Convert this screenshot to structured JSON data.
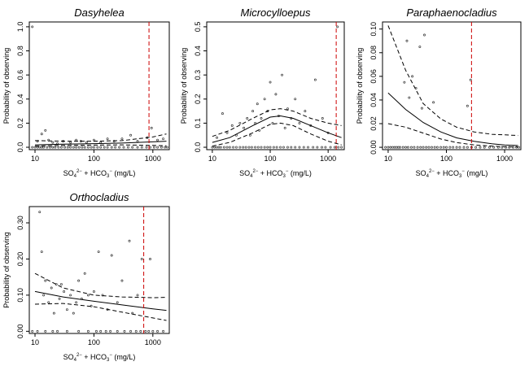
{
  "chart_data": [
    {
      "type": "scatter",
      "title": "Dasyhelea",
      "xlabel": {
        "base1": "SO",
        "sub1": "4",
        "sup1": "2−",
        "mid": " + HCO",
        "sub2": "3",
        "sup2": "−",
        "unit": " (mg/L)"
      },
      "ylabel": "Probability of observing",
      "xscale": "log",
      "xlim": [
        8,
        1900
      ],
      "ylim": [
        -0.02,
        1.04
      ],
      "xticks": [
        10,
        100,
        1000
      ],
      "xtick_labels": [
        "10",
        "100",
        "1000"
      ],
      "yticks": [
        0,
        0.2,
        0.4,
        0.6,
        0.8,
        1.0
      ],
      "ytick_labels": [
        "0.0",
        "0.2",
        "0.4",
        "0.6",
        "0.8",
        "1.0"
      ],
      "threshold_x": 860,
      "points": [
        {
          "x": 9,
          "y": 1.0
        },
        {
          "x": 11,
          "y": 0.05
        },
        {
          "x": 13,
          "y": 0.11
        },
        {
          "x": 15,
          "y": 0.14
        },
        {
          "x": 17,
          "y": 0.06
        },
        {
          "x": 20,
          "y": 0.04
        },
        {
          "x": 24,
          "y": 0.03
        },
        {
          "x": 30,
          "y": 0.05
        },
        {
          "x": 40,
          "y": 0.04
        },
        {
          "x": 50,
          "y": 0.06
        },
        {
          "x": 60,
          "y": 0.05
        },
        {
          "x": 75,
          "y": 0.04
        },
        {
          "x": 100,
          "y": 0.06
        },
        {
          "x": 130,
          "y": 0.04
        },
        {
          "x": 170,
          "y": 0.07
        },
        {
          "x": 220,
          "y": 0.05
        },
        {
          "x": 300,
          "y": 0.07
        },
        {
          "x": 420,
          "y": 0.1
        },
        {
          "x": 550,
          "y": 0.05
        },
        {
          "x": 800,
          "y": 0.08
        },
        {
          "x": 950,
          "y": 0.16
        },
        {
          "x": 1200,
          "y": 0.06
        },
        {
          "x": 1500,
          "y": 0.07
        }
      ],
      "zeros_x": [
        9,
        10,
        11,
        12,
        13,
        14,
        16,
        18,
        20,
        22,
        25,
        28,
        32,
        36,
        40,
        45,
        50,
        56,
        63,
        70,
        80,
        90,
        100,
        115,
        130,
        150,
        170,
        200,
        230,
        270,
        320,
        380,
        450,
        550,
        650,
        780,
        900,
        1050,
        1200,
        1400,
        1600,
        1750
      ],
      "fit_x": [
        10,
        30,
        100,
        300,
        1000,
        1700
      ],
      "fit_y": [
        0.02,
        0.025,
        0.03,
        0.035,
        0.045,
        0.05
      ],
      "lower_y": [
        0.01,
        0.015,
        0.018,
        0.02,
        0.015,
        0.012
      ],
      "upper_y": [
        0.055,
        0.05,
        0.05,
        0.055,
        0.085,
        0.11
      ]
    },
    {
      "type": "scatter",
      "title": "Microcylloepus",
      "xlabel": {
        "base1": "SO",
        "sub1": "4",
        "sup1": "2−",
        "mid": " + HCO",
        "sub2": "3",
        "sup2": "−",
        "unit": " (mg/L)"
      },
      "ylabel": "Probability of observing",
      "xscale": "log",
      "xlim": [
        8,
        1900
      ],
      "ylim": [
        -0.01,
        0.52
      ],
      "xticks": [
        10,
        100,
        1000
      ],
      "xtick_labels": [
        "10",
        "100",
        "1000"
      ],
      "yticks": [
        0,
        0.1,
        0.2,
        0.3,
        0.4,
        0.5
      ],
      "ytick_labels": [
        "0.0",
        "0.1",
        "0.2",
        "0.3",
        "0.4",
        "0.5"
      ],
      "threshold_x": 1380,
      "points": [
        {
          "x": 12,
          "y": 0.04
        },
        {
          "x": 15,
          "y": 0.14
        },
        {
          "x": 18,
          "y": 0.06
        },
        {
          "x": 22,
          "y": 0.09
        },
        {
          "x": 26,
          "y": 0.05
        },
        {
          "x": 30,
          "y": 0.1
        },
        {
          "x": 35,
          "y": 0.08
        },
        {
          "x": 40,
          "y": 0.12
        },
        {
          "x": 45,
          "y": 0.05
        },
        {
          "x": 50,
          "y": 0.15
        },
        {
          "x": 55,
          "y": 0.1
        },
        {
          "x": 60,
          "y": 0.18
        },
        {
          "x": 65,
          "y": 0.07
        },
        {
          "x": 70,
          "y": 0.12
        },
        {
          "x": 80,
          "y": 0.2
        },
        {
          "x": 90,
          "y": 0.15
        },
        {
          "x": 100,
          "y": 0.27
        },
        {
          "x": 110,
          "y": 0.1
        },
        {
          "x": 125,
          "y": 0.22
        },
        {
          "x": 140,
          "y": 0.13
        },
        {
          "x": 160,
          "y": 0.3
        },
        {
          "x": 180,
          "y": 0.08
        },
        {
          "x": 200,
          "y": 0.16
        },
        {
          "x": 230,
          "y": 0.12
        },
        {
          "x": 270,
          "y": 0.2
        },
        {
          "x": 320,
          "y": 0.1
        },
        {
          "x": 400,
          "y": 0.15
        },
        {
          "x": 500,
          "y": 0.09
        },
        {
          "x": 600,
          "y": 0.28
        },
        {
          "x": 800,
          "y": 0.12
        },
        {
          "x": 1000,
          "y": 0.06
        },
        {
          "x": 1450,
          "y": 0.5
        }
      ],
      "zeros_x": [
        10,
        11,
        12,
        13,
        14,
        16,
        18,
        20,
        23,
        26,
        30,
        34,
        38,
        43,
        48,
        55,
        62,
        70,
        80,
        90,
        100,
        115,
        130,
        150,
        170,
        200,
        230,
        270,
        320,
        380,
        450,
        550,
        650,
        780,
        900,
        1100,
        1300,
        1500,
        1700
      ],
      "fit_x": [
        10,
        20,
        50,
        100,
        150,
        250,
        500,
        1000,
        1700
      ],
      "fit_y": [
        0.02,
        0.04,
        0.09,
        0.125,
        0.13,
        0.12,
        0.09,
        0.06,
        0.04
      ],
      "lower_y": [
        0.005,
        0.02,
        0.06,
        0.095,
        0.1,
        0.09,
        0.055,
        0.025,
        0.01
      ],
      "upper_y": [
        0.045,
        0.07,
        0.12,
        0.155,
        0.16,
        0.15,
        0.12,
        0.1,
        0.09
      ]
    },
    {
      "type": "scatter",
      "title": "Paraphaenocladius",
      "xlabel": {
        "base1": "SO",
        "sub1": "4",
        "sup1": "2−",
        "mid": " + HCO",
        "sub2": "3",
        "sup2": "−",
        "unit": " (mg/L)"
      },
      "ylabel": "Probability of observing",
      "xscale": "log",
      "xlim": [
        8,
        1900
      ],
      "ylim": [
        -0.002,
        0.106
      ],
      "xticks": [
        10,
        100,
        1000
      ],
      "xtick_labels": [
        "10",
        "100",
        "1000"
      ],
      "yticks": [
        0,
        0.02,
        0.04,
        0.06,
        0.08,
        0.1
      ],
      "ytick_labels": [
        "0.00",
        "0.02",
        "0.04",
        "0.06",
        "0.08",
        "0.10"
      ],
      "threshold_x": 270,
      "points": [
        {
          "x": 19,
          "y": 0.055
        },
        {
          "x": 21,
          "y": 0.09
        },
        {
          "x": 23,
          "y": 0.042
        },
        {
          "x": 26,
          "y": 0.06
        },
        {
          "x": 30,
          "y": 0.05
        },
        {
          "x": 35,
          "y": 0.085
        },
        {
          "x": 38,
          "y": 0.033
        },
        {
          "x": 42,
          "y": 0.095
        },
        {
          "x": 60,
          "y": 0.038
        },
        {
          "x": 230,
          "y": 0.035
        },
        {
          "x": 260,
          "y": 0.057
        }
      ],
      "zeros_x": [
        9,
        10,
        11,
        12,
        13,
        14,
        15,
        16,
        18,
        20,
        22,
        25,
        28,
        32,
        36,
        40,
        45,
        50,
        56,
        63,
        70,
        80,
        90,
        100,
        115,
        130,
        150,
        170,
        200,
        230,
        270,
        320,
        380,
        450,
        550,
        650,
        780,
        900,
        1050,
        1200,
        1400,
        1600,
        1750
      ],
      "fit_x": [
        10,
        20,
        40,
        80,
        150,
        300,
        600,
        1000,
        1700
      ],
      "fit_y": [
        0.046,
        0.032,
        0.021,
        0.013,
        0.008,
        0.005,
        0.003,
        0.002,
        0.0015
      ],
      "lower_y": [
        0.02,
        0.017,
        0.012,
        0.007,
        0.004,
        0.002,
        0.001,
        0.0005,
        0.0003
      ],
      "upper_y": [
        0.103,
        0.065,
        0.037,
        0.024,
        0.017,
        0.013,
        0.011,
        0.0105,
        0.01
      ]
    },
    {
      "type": "scatter",
      "title": "Orthocladius",
      "xlabel": {
        "base1": "SO",
        "sub1": "4",
        "sup1": "2−",
        "mid": " + HCO",
        "sub2": "3",
        "sup2": "−",
        "unit": " (mg/L)"
      },
      "ylabel": "Probability of observing",
      "xscale": "log",
      "xlim": [
        8,
        1900
      ],
      "ylim": [
        -0.006,
        0.345
      ],
      "xticks": [
        10,
        100,
        1000
      ],
      "xtick_labels": [
        "10",
        "100",
        "1000"
      ],
      "yticks": [
        0,
        0.1,
        0.2,
        0.3
      ],
      "ytick_labels": [
        "0.00",
        "0.10",
        "0.20",
        "0.30"
      ],
      "threshold_x": 700,
      "points": [
        {
          "x": 12,
          "y": 0.33
        },
        {
          "x": 13,
          "y": 0.22
        },
        {
          "x": 14,
          "y": 0.1
        },
        {
          "x": 15,
          "y": 0.14
        },
        {
          "x": 17,
          "y": 0.08
        },
        {
          "x": 19,
          "y": 0.12
        },
        {
          "x": 21,
          "y": 0.05
        },
        {
          "x": 23,
          "y": 0.13
        },
        {
          "x": 26,
          "y": 0.09
        },
        {
          "x": 28,
          "y": 0.13
        },
        {
          "x": 31,
          "y": 0.11
        },
        {
          "x": 35,
          "y": 0.06
        },
        {
          "x": 40,
          "y": 0.1
        },
        {
          "x": 45,
          "y": 0.05
        },
        {
          "x": 50,
          "y": 0.08
        },
        {
          "x": 55,
          "y": 0.14
        },
        {
          "x": 62,
          "y": 0.09
        },
        {
          "x": 70,
          "y": 0.16
        },
        {
          "x": 80,
          "y": 0.1
        },
        {
          "x": 90,
          "y": 0.07
        },
        {
          "x": 100,
          "y": 0.11
        },
        {
          "x": 120,
          "y": 0.22
        },
        {
          "x": 140,
          "y": 0.1
        },
        {
          "x": 170,
          "y": 0.06
        },
        {
          "x": 200,
          "y": 0.21
        },
        {
          "x": 250,
          "y": 0.08
        },
        {
          "x": 300,
          "y": 0.14
        },
        {
          "x": 400,
          "y": 0.25
        },
        {
          "x": 450,
          "y": 0.05
        },
        {
          "x": 550,
          "y": 0.1
        },
        {
          "x": 650,
          "y": 0.2
        },
        {
          "x": 900,
          "y": 0.2
        }
      ],
      "zeros_x": [
        9,
        11,
        15,
        20,
        24,
        35,
        55,
        80,
        110,
        130,
        160,
        190,
        250,
        330,
        420,
        520,
        620,
        750,
        850,
        1000,
        1200,
        1500
      ],
      "fit_x": [
        10,
        30,
        100,
        300,
        1000,
        1700
      ],
      "fit_y": [
        0.11,
        0.095,
        0.083,
        0.073,
        0.062,
        0.058
      ],
      "lower_y": [
        0.075,
        0.077,
        0.068,
        0.053,
        0.037,
        0.03
      ],
      "upper_y": [
        0.16,
        0.12,
        0.1,
        0.095,
        0.093,
        0.094
      ]
    }
  ]
}
